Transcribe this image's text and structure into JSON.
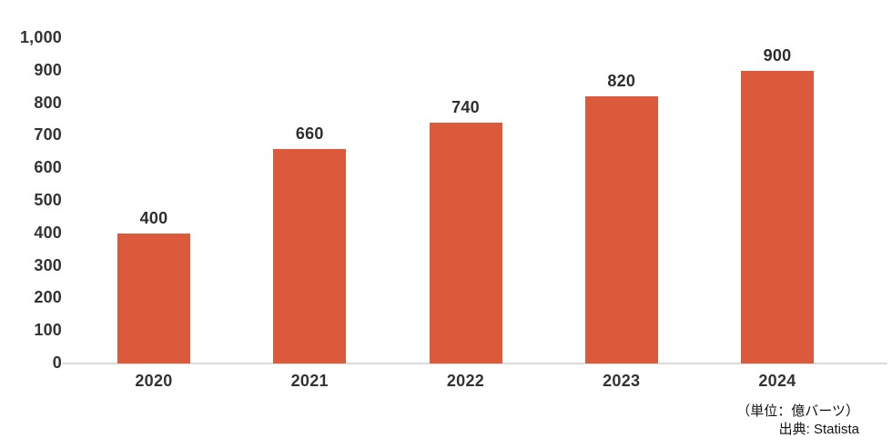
{
  "chart_data": {
    "type": "bar",
    "categories": [
      "2020",
      "2021",
      "2022",
      "2023",
      "2024"
    ],
    "values": [
      400,
      660,
      740,
      820,
      900
    ],
    "value_labels": [
      "400",
      "660",
      "740",
      "820",
      "900"
    ],
    "title": "",
    "xlabel": "",
    "ylabel": "",
    "ylim": [
      0,
      1000
    ],
    "yticks": [
      0,
      100,
      200,
      300,
      400,
      500,
      600,
      700,
      800,
      900,
      1000
    ],
    "ytick_labels": [
      "0",
      "100",
      "200",
      "300",
      "400",
      "500",
      "600",
      "700",
      "800",
      "900",
      "1,000"
    ],
    "grid": false,
    "legend": null,
    "bar_color": "#DB5A3B",
    "baseline_color": "#DADADA",
    "label_color": "#333333"
  },
  "footnote": {
    "unit": "（単位：億バーツ）",
    "source": "出典: Statista"
  }
}
